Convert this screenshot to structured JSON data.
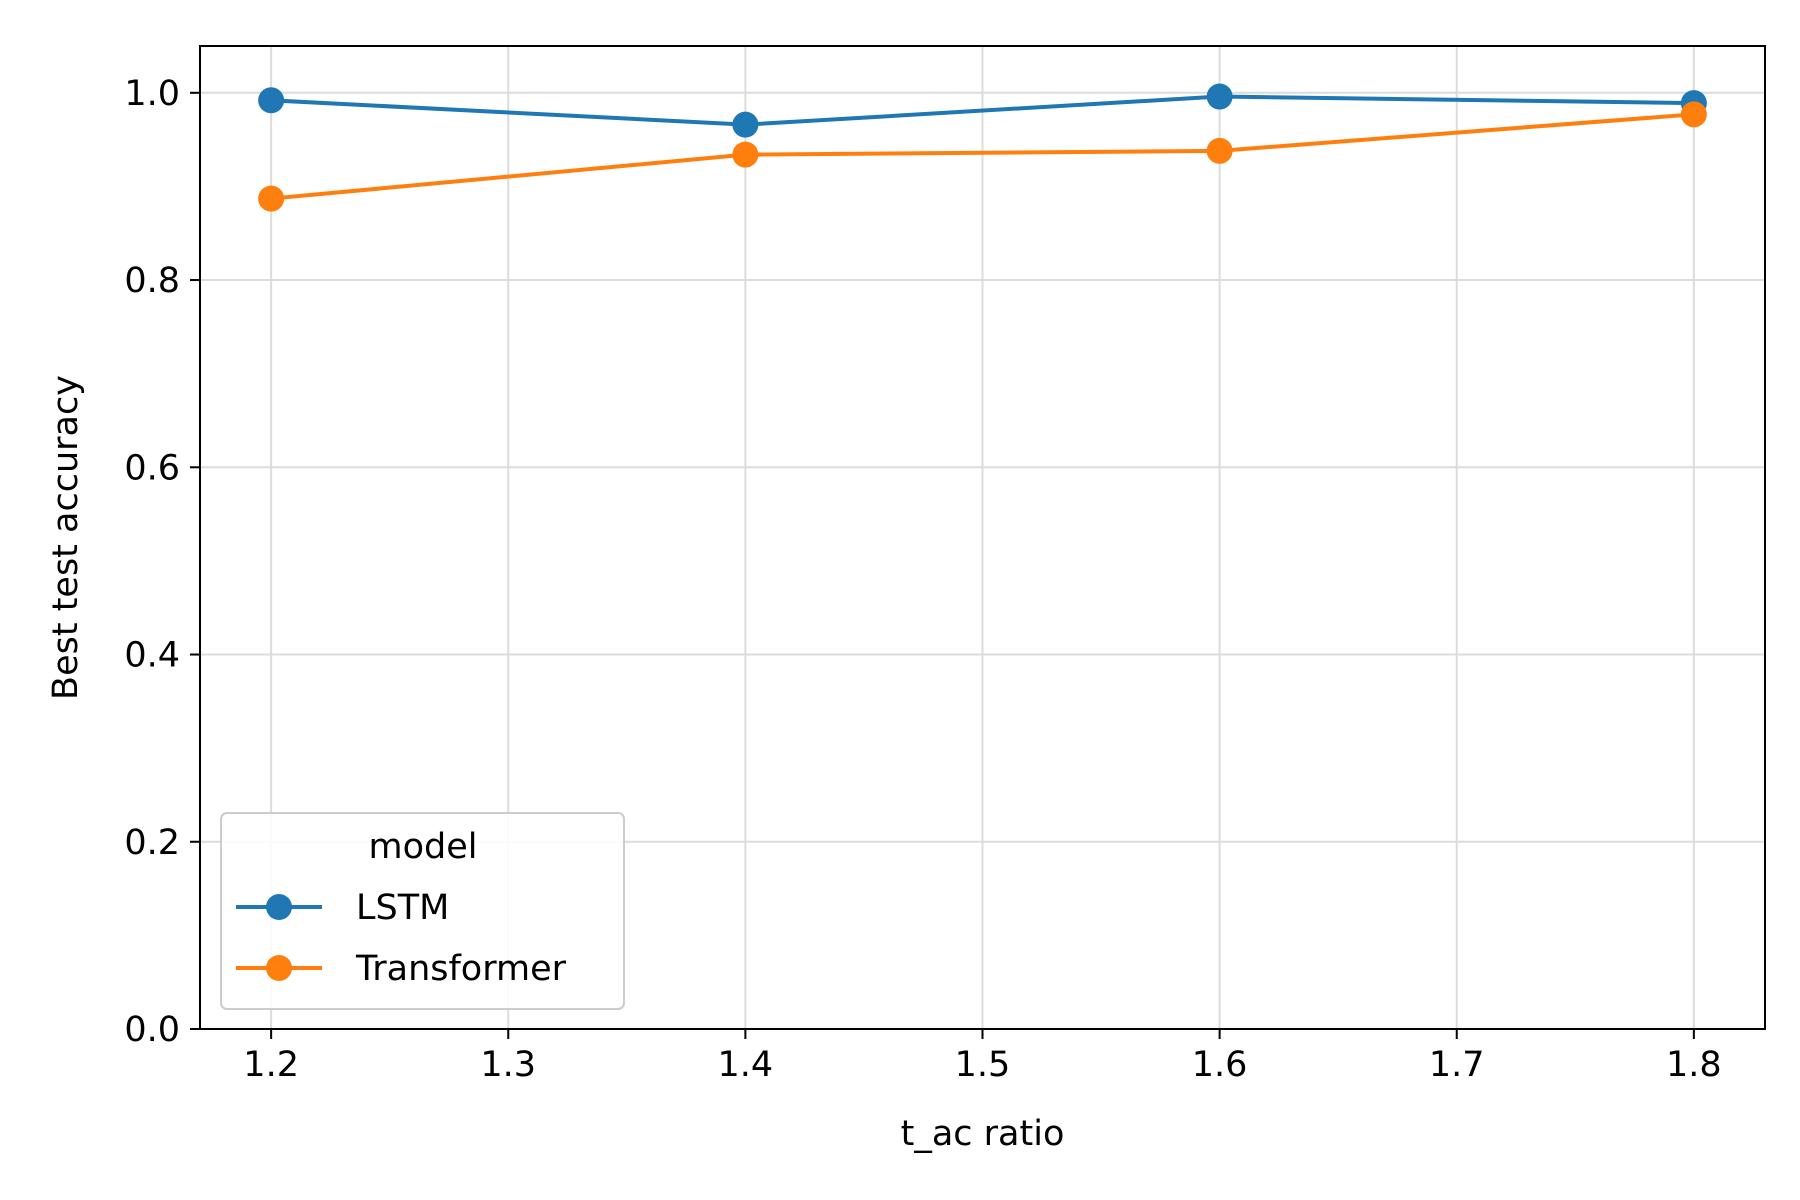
{
  "chart_data": {
    "type": "line",
    "title": "",
    "xlabel": "t_ac ratio",
    "ylabel": "Best test accuracy",
    "xlim": [
      1.17,
      1.83
    ],
    "ylim": [
      0.0,
      1.05
    ],
    "x_ticks": [
      1.2,
      1.3,
      1.4,
      1.5,
      1.6,
      1.7,
      1.8
    ],
    "x_tick_labels": [
      "1.2",
      "1.3",
      "1.4",
      "1.5",
      "1.6",
      "1.7",
      "1.8"
    ],
    "y_ticks": [
      0.0,
      0.2,
      0.4,
      0.6,
      0.8,
      1.0
    ],
    "y_tick_labels": [
      "0.0",
      "0.2",
      "0.4",
      "0.6",
      "0.8",
      "1.0"
    ],
    "grid": true,
    "legend": {
      "title": "model",
      "placement": "lower-left"
    },
    "x": [
      1.2,
      1.4,
      1.6,
      1.8
    ],
    "series": [
      {
        "name": "LSTM",
        "color": "#1f77b4",
        "marker": "circle",
        "values": [
          0.992,
          0.966,
          0.996,
          0.989
        ]
      },
      {
        "name": "Transformer",
        "color": "#ff7f0e",
        "marker": "circle",
        "values": [
          0.887,
          0.934,
          0.938,
          0.977
        ]
      }
    ]
  }
}
